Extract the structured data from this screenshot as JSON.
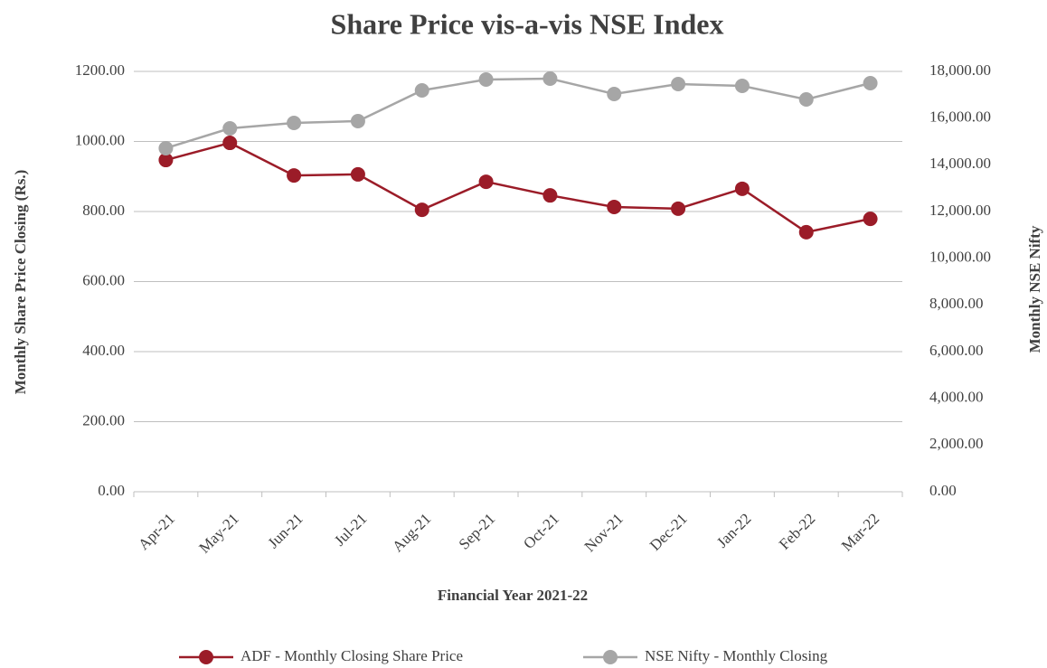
{
  "chart_data": {
    "type": "line",
    "title": "Share Price vis-a-vis NSE Index",
    "xlabel": "Financial Year 2021-22",
    "ylabel": "Monthly Share Price Closing (Rs.)",
    "y2label": "Monthly NSE Nifty",
    "categories": [
      "Apr-21",
      "May-21",
      "Jun-21",
      "Jul-21",
      "Aug-21",
      "Sep-21",
      "Oct-21",
      "Nov-21",
      "Dec-21",
      "Jan-22",
      "Feb-22",
      "Mar-22"
    ],
    "series": [
      {
        "name": "ADF - Monthly Closing Share Price",
        "color": "#9b1c28",
        "axis": "y",
        "values": [
          947,
          996,
          903,
          906,
          805,
          885,
          846,
          813,
          808,
          865,
          741,
          779
        ]
      },
      {
        "name": "NSE Nifty - Monthly Closing",
        "color": "#a6a6a6",
        "axis": "y2",
        "values": [
          14710,
          15561,
          15794,
          15871,
          17187,
          17652,
          17690,
          17032,
          17458,
          17381,
          16800,
          17497
        ]
      }
    ],
    "ylim": [
      0,
      1200
    ],
    "yticks": [
      {
        "value": 0,
        "label": "0.00"
      },
      {
        "value": 200,
        "label": "200.00"
      },
      {
        "value": 400,
        "label": "400.00"
      },
      {
        "value": 600,
        "label": "600.00"
      },
      {
        "value": 800,
        "label": "800.00"
      },
      {
        "value": 1000,
        "label": "1000.00"
      },
      {
        "value": 1200,
        "label": "1200.00"
      }
    ],
    "y2lim": [
      0,
      18000
    ],
    "y2ticks": [
      {
        "value": 0,
        "label": "0.00"
      },
      {
        "value": 2000,
        "label": "2,000.00"
      },
      {
        "value": 4000,
        "label": "4,000.00"
      },
      {
        "value": 6000,
        "label": "6,000.00"
      },
      {
        "value": 8000,
        "label": "8,000.00"
      },
      {
        "value": 10000,
        "label": "10,000.00"
      },
      {
        "value": 12000,
        "label": "12,000.00"
      },
      {
        "value": 14000,
        "label": "14,000.00"
      },
      {
        "value": 16000,
        "label": "16,000.00"
      },
      {
        "value": 18000,
        "label": "18,000.00"
      }
    ],
    "grid": true,
    "legend": "bottom"
  }
}
